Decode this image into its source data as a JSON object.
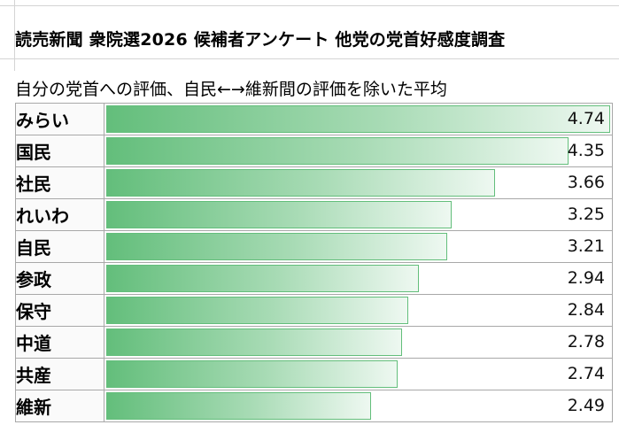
{
  "title": "読売新聞 衆院選2026 候補者アンケート 他党の党首好感度調査",
  "subtitle": "自分の党首への評価、自民←→維新間の評価を除いた平均",
  "colors": {
    "bar": "#63be7b",
    "bar_end": "#eef8f1",
    "grid": "#a8a8a8"
  },
  "chart_data": {
    "type": "bar",
    "orientation": "horizontal",
    "categories": [
      "みらい",
      "国民",
      "社民",
      "れいわ",
      "自民",
      "参政",
      "保守",
      "中道",
      "共産",
      "維新"
    ],
    "values": [
      4.74,
      4.35,
      3.66,
      3.25,
      3.21,
      2.94,
      2.84,
      2.78,
      2.74,
      2.49
    ],
    "labels": [
      "4.74",
      "4.35",
      "3.66",
      "3.25",
      "3.21",
      "2.94",
      "2.84",
      "2.78",
      "2.74",
      "2.49"
    ],
    "xlim": [
      0,
      4.74
    ]
  }
}
